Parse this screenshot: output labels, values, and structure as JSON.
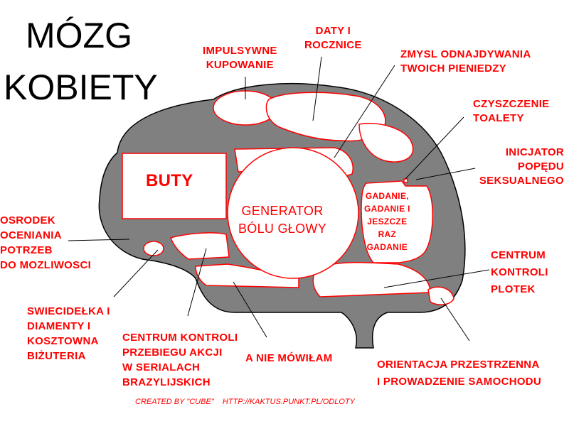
{
  "title": {
    "line1": "MÓZG",
    "line2": "KOBIETY"
  },
  "colors": {
    "brain": "#808080",
    "label": "#ff0000",
    "outline": "#000000",
    "region": "#ffffff"
  },
  "regions": {
    "buty": "BUTY",
    "generator": "GENERATOR\nBÓLU GŁOWY",
    "gadanie": "GADANIE,\nGADANIE I\nJESZCZE\nRAZ\nGADANIE"
  },
  "labels": {
    "impulsywne": "IMPULSYWNE\nKUPOWANIE",
    "daty": "DATY I\nROCZNICE",
    "zmysl": "ZMYSL ODNAJDYWANIA\nTWOICH PIENIEDZY",
    "czyszczenie": "CZYSZCZENIE\nTOALETY",
    "inicjator": "INICJATOR\nPOPĘDU\nSEKSUALNEGO",
    "osrodek": "OSRODEK\nOCENIANIA\nPOTRZEB\nDO MOZLIWOSCI",
    "plotki": "CENTRUM\nKONTROLI\nPLOTEK",
    "swiecidelka": "SWIECIDEŁKA I\nDIAMENTY I\nKOSZTOWNA\nBIŻUTERIA",
    "seriale": "CENTRUM KONTROLI\nPRZEBIEGU AKCJI\nW SERIALACH\nBRAZYLIJSKICH",
    "nie_mowilam": "A NIE MÓWIŁAM",
    "orientacja": "ORIENTACJA PRZESTRZENNA\nI PROWADZENIE SAMOCHODU"
  },
  "credit": "CREATED BY \"CUBE\"    HTTP://KAKTUS.PUNKT.PL/ODLOTY"
}
